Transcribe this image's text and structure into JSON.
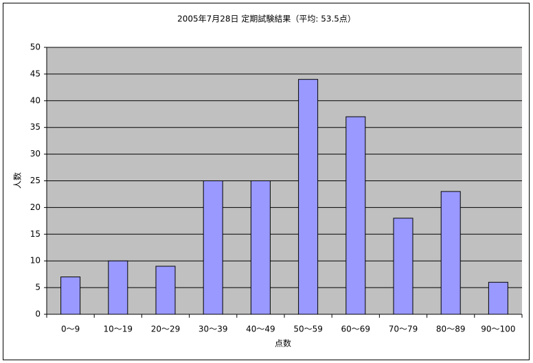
{
  "chart_data": {
    "type": "bar",
    "title": "2005年7月28日 定期試験結果（平均: 53.5点）",
    "x_label": "点数",
    "y_label": "人数",
    "categories": [
      "0～9",
      "10～19",
      "20～29",
      "30～39",
      "40～49",
      "50～59",
      "60～69",
      "70～79",
      "80～89",
      "90～100"
    ],
    "values": [
      7,
      10,
      9,
      25,
      25,
      44,
      37,
      18,
      23,
      6
    ],
    "color": "#9999ff",
    "ylim": [
      0,
      50
    ],
    "yticks": [
      0,
      5,
      10,
      15,
      20,
      25,
      30,
      35,
      40,
      45,
      50
    ],
    "grid": true
  }
}
